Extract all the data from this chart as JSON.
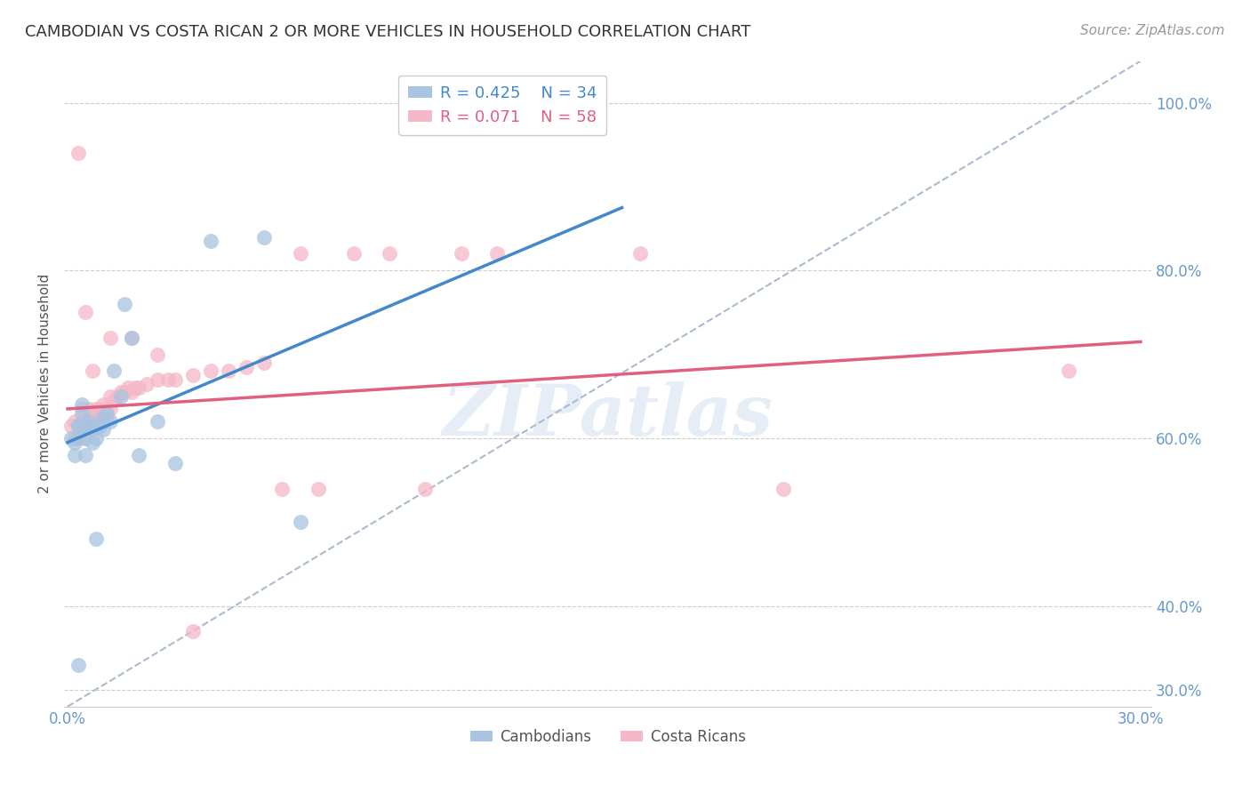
{
  "title": "CAMBODIAN VS COSTA RICAN 2 OR MORE VEHICLES IN HOUSEHOLD CORRELATION CHART",
  "source": "Source: ZipAtlas.com",
  "ylabel": "2 or more Vehicles in Household",
  "legend_label1": "Cambodians",
  "legend_label2": "Costa Ricans",
  "R_cambodian": 0.425,
  "N_cambodian": 34,
  "R_costa_rican": 0.071,
  "N_costa_rican": 58,
  "xmin": 0.0,
  "xmax": 0.3,
  "ymin": 0.28,
  "ymax": 1.05,
  "color_cambodian": "#a8c4e0",
  "color_costa_rican": "#f4b8c8",
  "color_line_cambodian": "#4488cc",
  "color_line_costa_rican": "#e06080",
  "color_axis_labels": "#6699cc",
  "watermark": "ZIPatlas",
  "line_camb_x0": 0.0,
  "line_camb_y0": 0.595,
  "line_camb_x1": 0.155,
  "line_camb_y1": 0.875,
  "line_cr_x0": 0.0,
  "line_cr_y0": 0.635,
  "line_cr_x1": 0.3,
  "line_cr_y1": 0.715,
  "cambodian_x": [
    0.001,
    0.002,
    0.002,
    0.003,
    0.003,
    0.003,
    0.004,
    0.004,
    0.005,
    0.005,
    0.005,
    0.006,
    0.006,
    0.007,
    0.007,
    0.008,
    0.008,
    0.009,
    0.01,
    0.01,
    0.011,
    0.012,
    0.013,
    0.015,
    0.016,
    0.018,
    0.02,
    0.025,
    0.03,
    0.04,
    0.055,
    0.065,
    0.008,
    0.003
  ],
  "cambodian_y": [
    0.6,
    0.595,
    0.58,
    0.615,
    0.6,
    0.615,
    0.63,
    0.64,
    0.6,
    0.58,
    0.615,
    0.62,
    0.615,
    0.595,
    0.61,
    0.615,
    0.6,
    0.615,
    0.625,
    0.61,
    0.63,
    0.62,
    0.68,
    0.65,
    0.76,
    0.72,
    0.58,
    0.62,
    0.57,
    0.835,
    0.84,
    0.5,
    0.48,
    0.33
  ],
  "costa_rican_x": [
    0.001,
    0.002,
    0.002,
    0.003,
    0.003,
    0.004,
    0.004,
    0.005,
    0.005,
    0.006,
    0.006,
    0.007,
    0.007,
    0.008,
    0.008,
    0.009,
    0.009,
    0.01,
    0.01,
    0.011,
    0.011,
    0.012,
    0.012,
    0.013,
    0.014,
    0.015,
    0.016,
    0.017,
    0.018,
    0.019,
    0.02,
    0.022,
    0.025,
    0.028,
    0.03,
    0.035,
    0.04,
    0.045,
    0.05,
    0.055,
    0.06,
    0.065,
    0.07,
    0.08,
    0.09,
    0.1,
    0.11,
    0.12,
    0.16,
    0.2,
    0.003,
    0.005,
    0.007,
    0.012,
    0.018,
    0.025,
    0.035,
    0.28
  ],
  "costa_rican_y": [
    0.615,
    0.62,
    0.6,
    0.615,
    0.6,
    0.635,
    0.62,
    0.615,
    0.6,
    0.635,
    0.62,
    0.615,
    0.63,
    0.625,
    0.635,
    0.62,
    0.635,
    0.64,
    0.625,
    0.63,
    0.625,
    0.65,
    0.635,
    0.645,
    0.65,
    0.655,
    0.655,
    0.66,
    0.655,
    0.66,
    0.66,
    0.665,
    0.67,
    0.67,
    0.67,
    0.675,
    0.68,
    0.68,
    0.685,
    0.69,
    0.54,
    0.82,
    0.54,
    0.82,
    0.82,
    0.54,
    0.82,
    0.82,
    0.82,
    0.54,
    0.94,
    0.75,
    0.68,
    0.72,
    0.72,
    0.7,
    0.37,
    0.68
  ],
  "yticks": [
    0.3,
    0.4,
    0.6,
    0.8,
    1.0
  ],
  "ytick_labels": [
    "30.0%",
    "40.0%",
    "60.0%",
    "80.0%",
    "100.0%"
  ],
  "xticks": [
    0.0,
    0.05,
    0.1,
    0.15,
    0.2,
    0.25,
    0.3
  ],
  "xtick_labels": [
    "0.0%",
    "",
    "",
    "",
    "",
    "",
    "30.0%"
  ]
}
